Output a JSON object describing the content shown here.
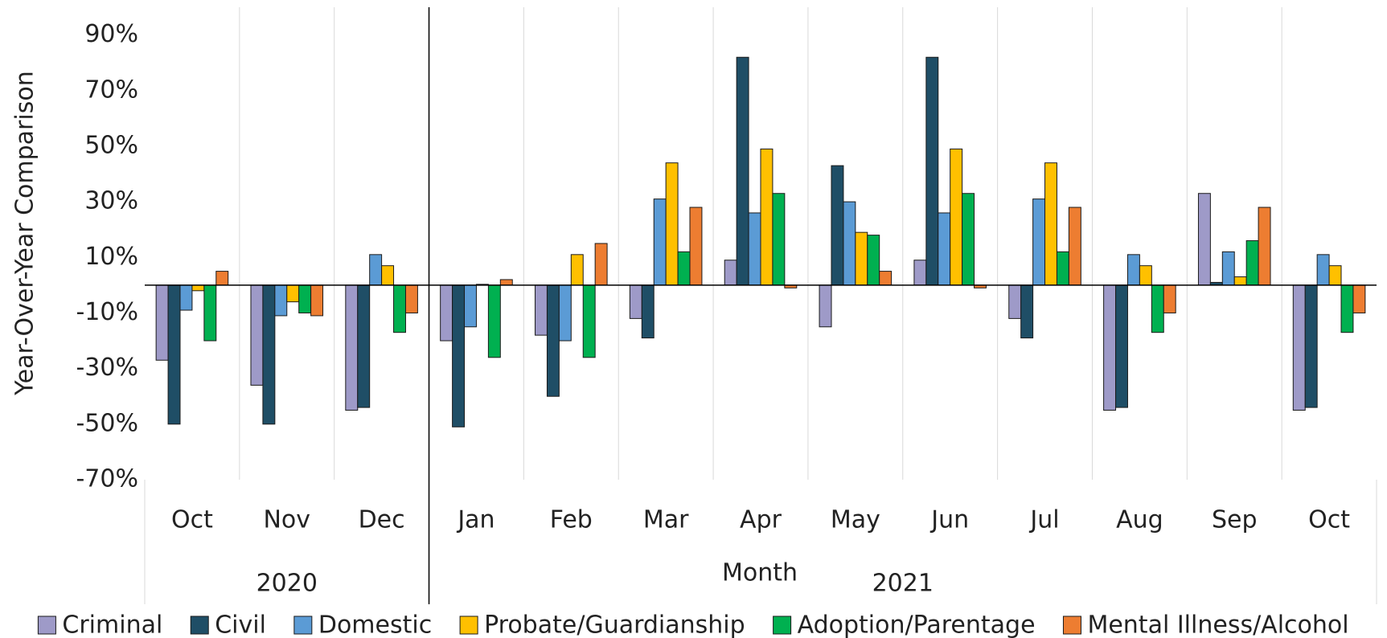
{
  "chart_data": {
    "type": "bar",
    "y_label": "Year-Over-Year Comparison",
    "x_label": "Month",
    "categories": [
      "Oct",
      "Nov",
      "Dec",
      "Jan",
      "Feb",
      "Mar",
      "Apr",
      "May",
      "Jun",
      "Jul",
      "Aug",
      "Sep",
      "Oct"
    ],
    "category_groups": [
      {
        "label": "2020",
        "span": 3
      },
      {
        "label": "2021",
        "span": 10
      }
    ],
    "series": [
      {
        "name": "Criminal",
        "color": "#9e9ac8",
        "values": [
          -27,
          -36,
          -45,
          -20,
          -18,
          -12,
          9,
          -15,
          9,
          -12,
          -45,
          33,
          -45
        ]
      },
      {
        "name": "Civil",
        "color": "#1f4e66",
        "values": [
          -50,
          -50,
          -44,
          -51,
          -40,
          -19,
          82,
          43,
          82,
          -19,
          -44,
          1,
          -44
        ]
      },
      {
        "name": "Domestic",
        "color": "#5b9bd5",
        "values": [
          -9,
          -11,
          11,
          -15,
          -20,
          31,
          26,
          30,
          26,
          31,
          11,
          12,
          11
        ]
      },
      {
        "name": "Probate/Guardianship",
        "color": "#ffc000",
        "values": [
          -2,
          -6,
          7,
          0.3,
          11,
          44,
          49,
          19,
          49,
          44,
          7,
          3,
          7
        ]
      },
      {
        "name": "Adoption/Parentage",
        "color": "#00b050",
        "values": [
          -20,
          -10,
          -17,
          -26,
          -26,
          12,
          33,
          18,
          33,
          12,
          -17,
          16,
          -17
        ]
      },
      {
        "name": "Mental Illness/Alcohol",
        "color": "#ed7d31",
        "values": [
          5,
          -11,
          -10,
          2,
          15,
          28,
          -1,
          5,
          -1,
          28,
          -10,
          28,
          -10
        ]
      }
    ],
    "ylim": [
      -70,
      100
    ],
    "yticks": [
      {
        "value": -70,
        "label": "-70%"
      },
      {
        "value": -50,
        "label": "-50%"
      },
      {
        "value": -30,
        "label": "-30%"
      },
      {
        "value": -10,
        "label": "-10%"
      },
      {
        "value": 10,
        "label": "10%"
      },
      {
        "value": 30,
        "label": "30%"
      },
      {
        "value": 50,
        "label": "50%"
      },
      {
        "value": 70,
        "label": "70%"
      },
      {
        "value": 90,
        "label": "90%"
      }
    ],
    "grid": true,
    "legend": "bottom"
  }
}
